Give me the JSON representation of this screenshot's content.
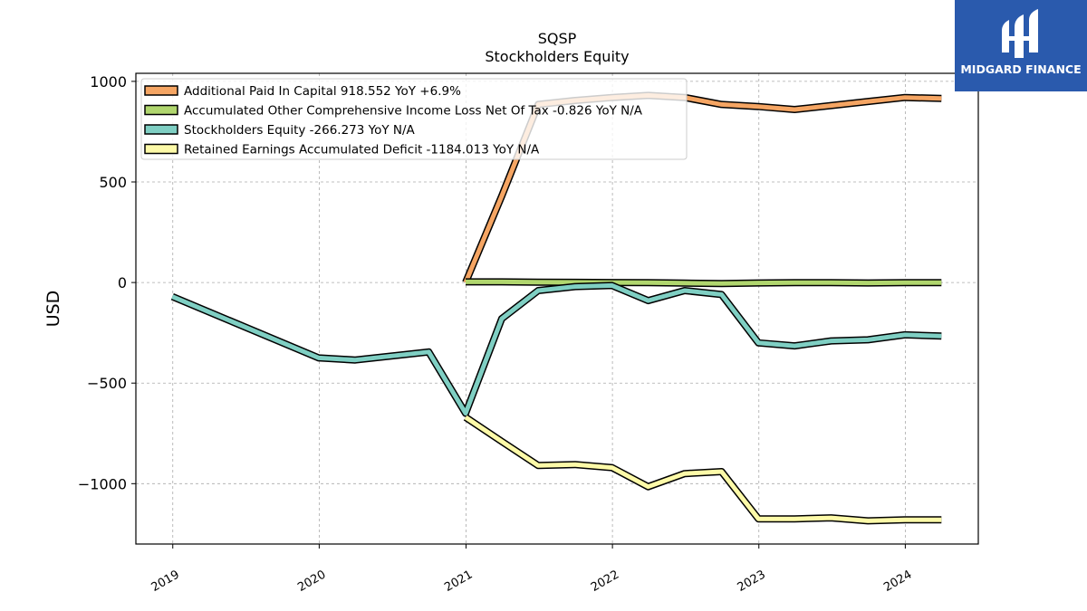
{
  "brand": {
    "name": "MIDGARD FINANCE",
    "logo_icon": "midgard-logo-icon",
    "background": "#2a5aad"
  },
  "chart_data": {
    "type": "line",
    "title": "SQSP",
    "subtitle": "Stockholders  Equity",
    "xlabel": "",
    "ylabel": "USD",
    "xlim": [
      "2018-10-01",
      "2024-07-01"
    ],
    "ylim": [
      -1300,
      1040
    ],
    "x_ticks": [
      "2019",
      "2020",
      "2021",
      "2022",
      "2023",
      "2024"
    ],
    "y_ticks": [
      1000,
      500,
      0,
      -500,
      -1000
    ],
    "y_tick_labels": [
      "1000",
      "500",
      "0",
      "−500",
      "−1000"
    ],
    "grid": true,
    "legend_position": "top-left",
    "series": [
      {
        "name": "Additional Paid In Capital  918.552 YoY +6.9%",
        "color": "#f5a563",
        "points": [
          [
            "2020-12-31",
            0
          ],
          [
            "2021-03-31",
            430
          ],
          [
            "2021-06-30",
            885
          ],
          [
            "2021-09-30",
            905
          ],
          [
            "2021-12-31",
            920
          ],
          [
            "2022-03-31",
            930
          ],
          [
            "2022-06-30",
            920
          ],
          [
            "2022-09-30",
            885
          ],
          [
            "2022-12-31",
            875
          ],
          [
            "2023-03-31",
            860
          ],
          [
            "2023-06-30",
            880
          ],
          [
            "2023-09-30",
            900
          ],
          [
            "2023-12-31",
            920
          ],
          [
            "2024-03-31",
            915
          ]
        ]
      },
      {
        "name": "Accumulated Other Comprehensive Income Loss Net Of Tax  -0.826 YoY N/A",
        "color": "#b0d66e",
        "points": [
          [
            "2020-12-31",
            3
          ],
          [
            "2021-03-31",
            3
          ],
          [
            "2021-06-30",
            2
          ],
          [
            "2021-09-30",
            1
          ],
          [
            "2021-12-31",
            0
          ],
          [
            "2022-03-31",
            -1
          ],
          [
            "2022-06-30",
            -3
          ],
          [
            "2022-09-30",
            -5
          ],
          [
            "2022-12-31",
            -2
          ],
          [
            "2023-03-31",
            -1
          ],
          [
            "2023-06-30",
            -1
          ],
          [
            "2023-09-30",
            -2
          ],
          [
            "2023-12-31",
            -1
          ],
          [
            "2024-03-31",
            -1
          ]
        ]
      },
      {
        "name": "Stockholders Equity  -266.273 YoY N/A",
        "color": "#7fcfc3",
        "points": [
          [
            "2018-12-31",
            -70
          ],
          [
            "2019-12-31",
            -375
          ],
          [
            "2020-03-31",
            -385
          ],
          [
            "2020-09-30",
            -345
          ],
          [
            "2020-12-31",
            -650
          ],
          [
            "2021-03-31",
            -180
          ],
          [
            "2021-06-30",
            -40
          ],
          [
            "2021-09-30",
            -20
          ],
          [
            "2021-12-31",
            -15
          ],
          [
            "2022-03-31",
            -90
          ],
          [
            "2022-06-30",
            -40
          ],
          [
            "2022-09-30",
            -60
          ],
          [
            "2022-12-31",
            -300
          ],
          [
            "2023-03-31",
            -315
          ],
          [
            "2023-06-30",
            -290
          ],
          [
            "2023-09-30",
            -285
          ],
          [
            "2023-12-31",
            -260
          ],
          [
            "2024-03-31",
            -266
          ]
        ]
      },
      {
        "name": "Retained Earnings Accumulated Deficit  -1184.013 YoY N/A",
        "color": "#fdfaa8",
        "points": [
          [
            "2020-12-31",
            -670
          ],
          [
            "2021-03-31",
            -790
          ],
          [
            "2021-06-30",
            -910
          ],
          [
            "2021-09-30",
            -905
          ],
          [
            "2021-12-31",
            -920
          ],
          [
            "2022-03-31",
            -1015
          ],
          [
            "2022-06-30",
            -950
          ],
          [
            "2022-09-30",
            -940
          ],
          [
            "2022-12-31",
            -1175
          ],
          [
            "2023-03-31",
            -1175
          ],
          [
            "2023-06-30",
            -1170
          ],
          [
            "2023-09-30",
            -1185
          ],
          [
            "2023-12-31",
            -1180
          ],
          [
            "2024-03-31",
            -1180
          ]
        ]
      }
    ]
  }
}
